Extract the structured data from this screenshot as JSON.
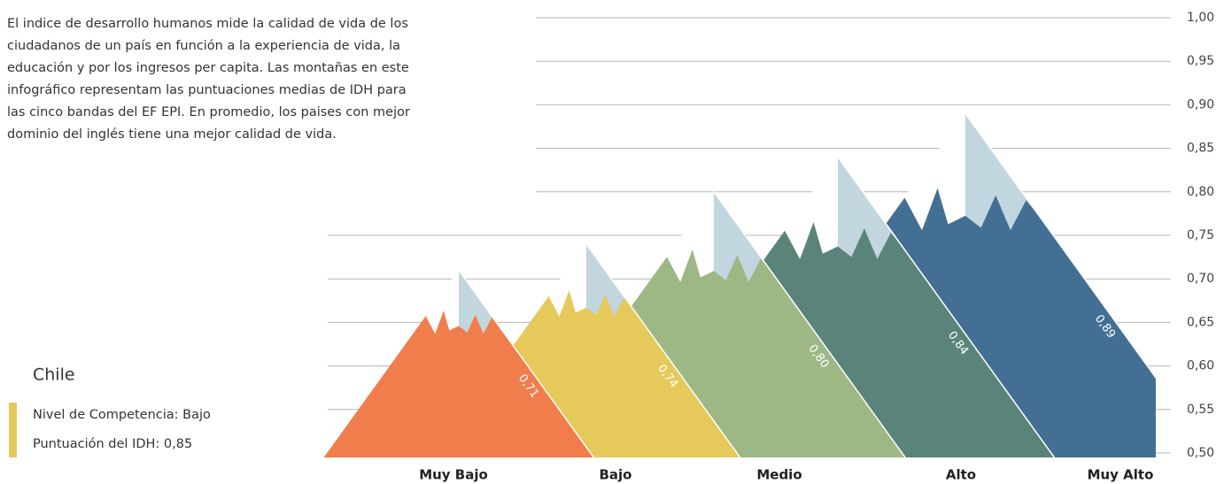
{
  "chart_data": {
    "type": "mountain",
    "description": [
      "El indice de desarrollo humanos mide la calidad de vida de los",
      "ciudadanos de un país en función a la experiencia de vida, la",
      "educación y por los ingresos per capita. Las montañas en este",
      "infográfico representam las puntuaciones medias de IDH para",
      "las cinco bandas del EF EPI. En promedio, los paises con mejor",
      "dominio del inglés tiene una mejor calidad de vida."
    ],
    "callout": {
      "title": "Chile",
      "lines": [
        "Nivel de Competencia: Bajo",
        "Puntuación del IDH: 0,85"
      ],
      "color": "#e5c95a"
    },
    "categories": [
      "Muy Bajo",
      "Bajo",
      "Medio",
      "Alto",
      "Muy Alto"
    ],
    "values": [
      0.71,
      0.74,
      0.8,
      0.84,
      0.89
    ],
    "value_labels": [
      "0,71",
      "0,74",
      "0,80",
      "0,84",
      "0,89"
    ],
    "colors": [
      "#f07d4b",
      "#e5c95a",
      "#9db885",
      "#5a8479",
      "#436f94"
    ],
    "ylim": [
      0.5,
      1.0
    ],
    "yticks": [
      {
        "value": 0.5,
        "label": "0,50"
      },
      {
        "value": 0.55,
        "label": "0,55"
      },
      {
        "value": 0.6,
        "label": "0,60"
      },
      {
        "value": 0.65,
        "label": "0,65"
      },
      {
        "value": 0.7,
        "label": "0,70"
      },
      {
        "value": 0.75,
        "label": "0,75"
      },
      {
        "value": 0.8,
        "label": "0,80"
      },
      {
        "value": 0.85,
        "label": "0,85"
      },
      {
        "value": 0.9,
        "label": "0,90"
      },
      {
        "value": 0.95,
        "label": "0,95"
      },
      {
        "value": 1.0,
        "label": "1,00"
      }
    ],
    "grid": true
  }
}
